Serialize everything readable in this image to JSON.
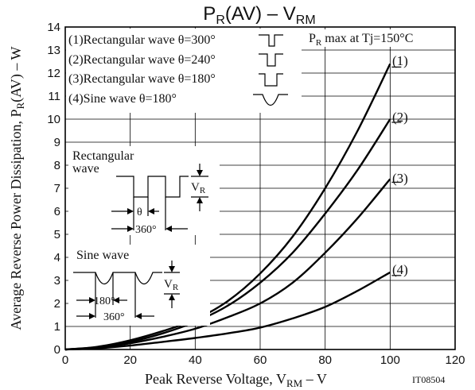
{
  "chart_data": {
    "type": "line",
    "title": {
      "main": "P",
      "sub1": "R",
      "mid": "(AV)  –  V",
      "sub2": "RM"
    },
    "xlabel": {
      "pre": "Peak Reverse Voltage, V",
      "sub": "RM",
      "post": "  –  V"
    },
    "ylabel": {
      "pre": "Average Reverse Power Dissipation, P",
      "sub": "R",
      "post": "(AV)  –  W"
    },
    "xlim": [
      0,
      120
    ],
    "ylim": [
      0,
      14
    ],
    "xticks": [
      "0",
      "20",
      "40",
      "60",
      "80",
      "100",
      "120"
    ],
    "yticks": [
      "0",
      "1",
      "2",
      "3",
      "4",
      "5",
      "6",
      "7",
      "8",
      "9",
      "10",
      "11",
      "12",
      "13",
      "14"
    ],
    "grid": true,
    "series": [
      {
        "name": "(1)",
        "x": [
          0,
          10,
          20,
          30,
          40,
          50,
          60,
          70,
          80,
          90,
          100
        ],
        "y": [
          0,
          0.12,
          0.4,
          0.8,
          1.3,
          2.1,
          3.3,
          4.9,
          7.0,
          9.5,
          12.4
        ]
      },
      {
        "name": "(2)",
        "x": [
          0,
          10,
          20,
          30,
          40,
          50,
          60,
          70,
          80,
          90,
          100
        ],
        "y": [
          0,
          0.1,
          0.33,
          0.7,
          1.2,
          1.9,
          2.9,
          4.2,
          5.9,
          7.8,
          10.0
        ]
      },
      {
        "name": "(3)",
        "x": [
          0,
          10,
          20,
          30,
          40,
          50,
          60,
          70,
          80,
          90,
          100
        ],
        "y": [
          0,
          0.08,
          0.27,
          0.55,
          0.9,
          1.4,
          2.0,
          2.9,
          4.2,
          5.7,
          7.4
        ]
      },
      {
        "name": "(4)",
        "x": [
          0,
          10,
          20,
          30,
          40,
          50,
          60,
          70,
          80,
          90,
          100
        ],
        "y": [
          0,
          0.05,
          0.17,
          0.33,
          0.5,
          0.7,
          0.95,
          1.35,
          1.85,
          2.55,
          3.35
        ]
      }
    ],
    "legend": [
      "(1)Rectangular wave θ=300°",
      "(2)Rectangular wave θ=240°",
      "(3)Rectangular wave θ=180°",
      "(4)Sine wave θ=180°"
    ],
    "note": {
      "pre": "P",
      "sub": "R",
      "post": " max at Tj=150°C"
    },
    "inset_rect": {
      "title1": "Rectangular",
      "title2": "wave",
      "theta": "θ",
      "period": "360°",
      "vr_pre": "V",
      "vr_sub": "R"
    },
    "inset_sine": {
      "title": "Sine wave",
      "theta": "180°",
      "period": "360°",
      "vr_pre": "V",
      "vr_sub": "R"
    },
    "code": "IT08504"
  }
}
